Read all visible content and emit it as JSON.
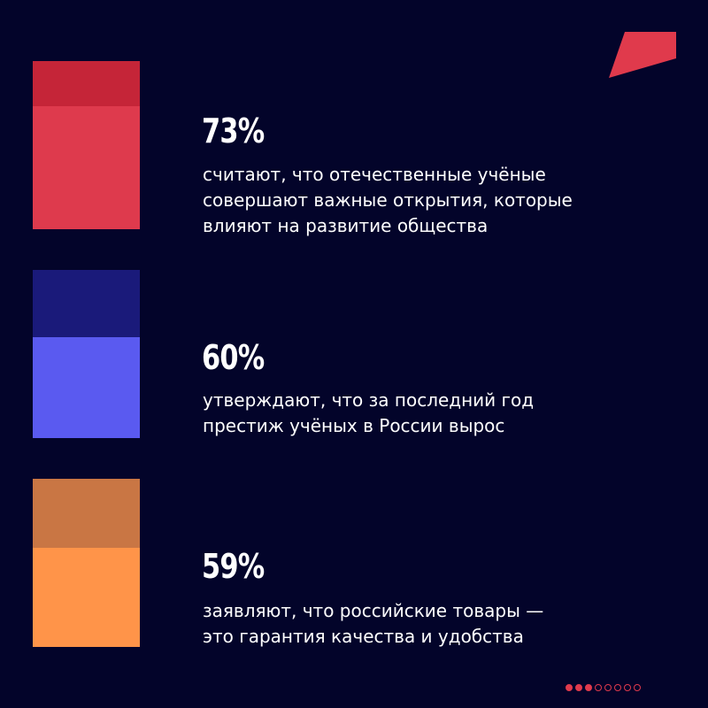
{
  "colors": {
    "background": "#03042a",
    "accent": "#e03a4c",
    "stat1_top": "#c52538",
    "stat1_bottom": "#de3a4d",
    "stat2_top": "#1a1a7a",
    "stat2_bottom": "#5a5af0",
    "stat3_top": "#c97644",
    "stat3_bottom": "#ff9449"
  },
  "logo_icon": "red-parallelogram-logo-icon",
  "chart_data": {
    "type": "bar",
    "title": "",
    "xlabel": "",
    "ylabel": "",
    "ylim": [
      0,
      100
    ],
    "items": [
      {
        "value": 73,
        "label": "73%",
        "description": "считают, что отечественные учёные\nсовершают важные открытия, которые\nвлияют на развитие общества"
      },
      {
        "value": 60,
        "label": "60%",
        "description": "утверждают, что за последний год\nпрестиж учёных в России вырос"
      },
      {
        "value": 59,
        "label": "59%",
        "description": "заявляют, что российские товары —\nэто гарантия качества и удобства"
      }
    ]
  },
  "pager": {
    "total": 8,
    "current": 3
  }
}
